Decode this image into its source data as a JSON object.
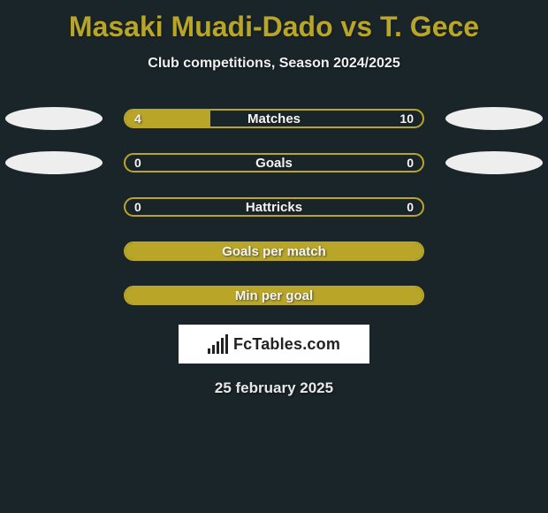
{
  "title": "Masaki Muadi-Dado vs T. Gece",
  "subtitle": "Club competitions, Season 2024/2025",
  "date": "25 february 2025",
  "colors": {
    "background": "#1a2529",
    "accent": "#b9a629",
    "text_light": "#f0f0f0",
    "bar_border": "#b9a629",
    "bar_fill": "#b9a629",
    "ellipse": "#eeeeee",
    "logo_bg": "#ffffff"
  },
  "logo_text": "FcTables.com",
  "rows": [
    {
      "label": "Matches",
      "left_value": "4",
      "right_value": "10",
      "fill_left_pct": 0,
      "fill_width_pct": 28.5,
      "has_ellipses": true
    },
    {
      "label": "Goals",
      "left_value": "0",
      "right_value": "0",
      "fill_left_pct": 0,
      "fill_width_pct": 0,
      "has_ellipses": true
    },
    {
      "label": "Hattricks",
      "left_value": "0",
      "right_value": "0",
      "fill_left_pct": 0,
      "fill_width_pct": 0,
      "has_ellipses": false
    },
    {
      "label": "Goals per match",
      "left_value": "",
      "right_value": "",
      "fill_left_pct": 0,
      "fill_width_pct": 100,
      "has_ellipses": false
    },
    {
      "label": "Min per goal",
      "left_value": "",
      "right_value": "",
      "fill_left_pct": 0,
      "fill_width_pct": 100,
      "has_ellipses": false
    }
  ]
}
